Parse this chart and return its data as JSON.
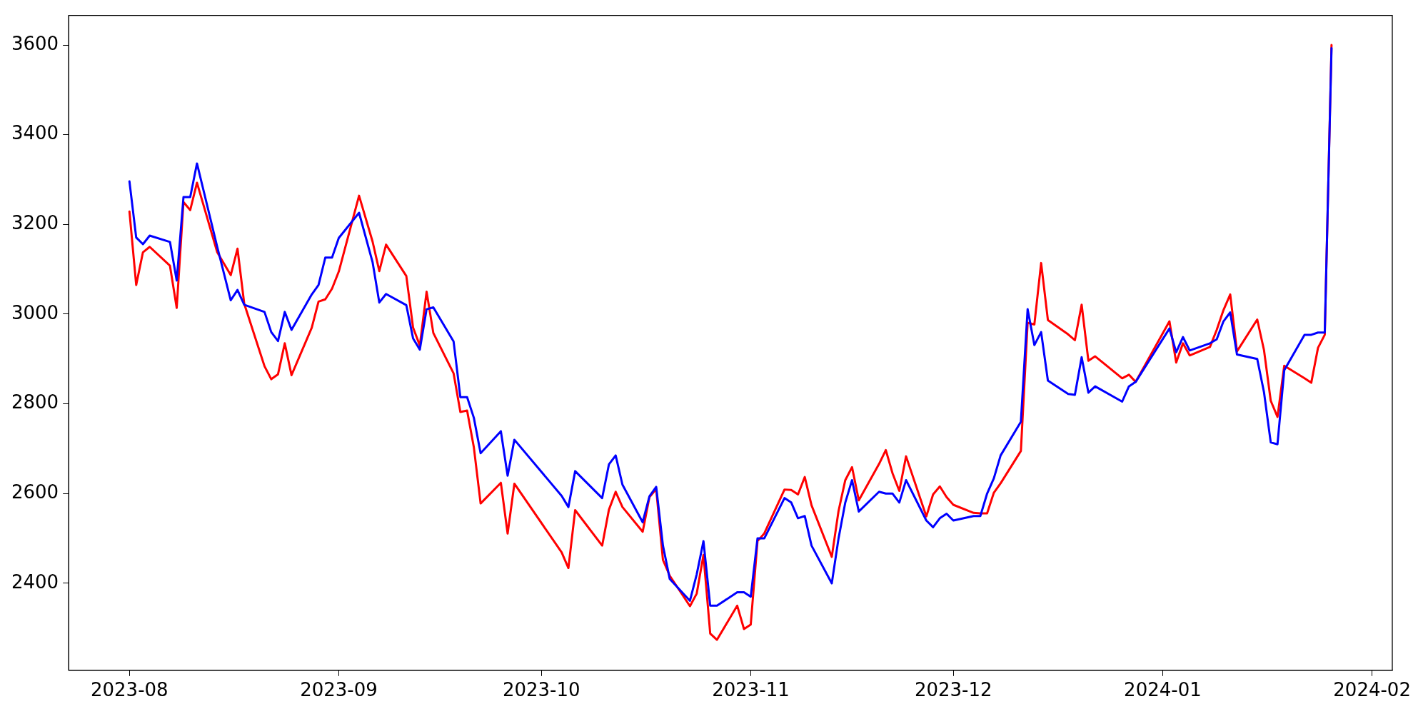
{
  "chart_data": {
    "type": "line",
    "x": [
      "2023-08-01",
      "2023-08-02",
      "2023-08-03",
      "2023-08-04",
      "2023-08-07",
      "2023-08-08",
      "2023-08-09",
      "2023-08-10",
      "2023-08-11",
      "2023-08-14",
      "2023-08-16",
      "2023-08-17",
      "2023-08-18",
      "2023-08-21",
      "2023-08-22",
      "2023-08-23",
      "2023-08-24",
      "2023-08-25",
      "2023-08-28",
      "2023-08-29",
      "2023-08-30",
      "2023-08-31",
      "2023-09-01",
      "2023-09-04",
      "2023-09-06",
      "2023-09-07",
      "2023-09-08",
      "2023-09-11",
      "2023-09-12",
      "2023-09-13",
      "2023-09-14",
      "2023-09-15",
      "2023-09-18",
      "2023-09-19",
      "2023-09-20",
      "2023-09-21",
      "2023-09-22",
      "2023-09-25",
      "2023-09-26",
      "2023-09-27",
      "2023-10-04",
      "2023-10-05",
      "2023-10-06",
      "2023-10-10",
      "2023-10-11",
      "2023-10-12",
      "2023-10-13",
      "2023-10-16",
      "2023-10-17",
      "2023-10-18",
      "2023-10-19",
      "2023-10-20",
      "2023-10-23",
      "2023-10-24",
      "2023-10-25",
      "2023-10-26",
      "2023-10-27",
      "2023-10-30",
      "2023-10-31",
      "2023-11-01",
      "2023-11-02",
      "2023-11-03",
      "2023-11-06",
      "2023-11-07",
      "2023-11-08",
      "2023-11-09",
      "2023-11-10",
      "2023-11-13",
      "2023-11-14",
      "2023-11-15",
      "2023-11-16",
      "2023-11-17",
      "2023-11-20",
      "2023-11-21",
      "2023-11-22",
      "2023-11-23",
      "2023-11-24",
      "2023-11-27",
      "2023-11-28",
      "2023-11-29",
      "2023-11-30",
      "2023-12-01",
      "2023-12-04",
      "2023-12-05",
      "2023-12-06",
      "2023-12-07",
      "2023-12-08",
      "2023-12-11",
      "2023-12-12",
      "2023-12-13",
      "2023-12-14",
      "2023-12-15",
      "2023-12-18",
      "2023-12-19",
      "2023-12-20",
      "2023-12-21",
      "2023-12-22",
      "2023-12-26",
      "2023-12-27",
      "2023-12-28",
      "2024-01-02",
      "2024-01-03",
      "2024-01-04",
      "2024-01-05",
      "2024-01-08",
      "2024-01-09",
      "2024-01-10",
      "2024-01-11",
      "2024-01-12",
      "2024-01-15",
      "2024-01-16",
      "2024-01-17",
      "2024-01-18",
      "2024-01-19",
      "2024-01-22",
      "2024-01-23",
      "2024-01-24",
      "2024-01-25",
      "2024-01-26"
    ],
    "series": [
      {
        "color": "#ff0000",
        "values": [
          3229,
          3065,
          3138,
          3150,
          3108,
          3014,
          3250,
          3232,
          3293,
          3138,
          3087,
          3146,
          3023,
          2884,
          2855,
          2866,
          2935,
          2864,
          2970,
          3028,
          3033,
          3057,
          3095,
          3264,
          3162,
          3096,
          3155,
          3085,
          2970,
          2930,
          3050,
          2958,
          2868,
          2782,
          2785,
          2703,
          2578,
          2624,
          2511,
          2622,
          2469,
          2434,
          2563,
          2484,
          2564,
          2604,
          2570,
          2515,
          2592,
          2610,
          2452,
          2417,
          2349,
          2377,
          2463,
          2288,
          2274,
          2350,
          2298,
          2308,
          2494,
          2511,
          2609,
          2608,
          2598,
          2637,
          2574,
          2459,
          2561,
          2630,
          2659,
          2585,
          2666,
          2697,
          2645,
          2606,
          2683,
          2549,
          2598,
          2616,
          2592,
          2575,
          2557,
          2556,
          2556,
          2602,
          2623,
          2695,
          2981,
          2977,
          3114,
          2987,
          2955,
          2942,
          3021,
          2896,
          2906,
          2857,
          2865,
          2849,
          2984,
          2892,
          2935,
          2908,
          2927,
          2965,
          3009,
          3044,
          2917,
          2988,
          2920,
          2807,
          2771,
          2885,
          2857,
          2847,
          2925,
          2954,
          3600
        ]
      },
      {
        "color": "#0000ff",
        "values": [
          3296,
          3171,
          3156,
          3175,
          3161,
          3075,
          3261,
          3261,
          3336,
          3150,
          3031,
          3054,
          3021,
          3005,
          2960,
          2940,
          3005,
          2965,
          3044,
          3065,
          3126,
          3126,
          3170,
          3226,
          3116,
          3026,
          3045,
          3020,
          2946,
          2921,
          3011,
          3015,
          2939,
          2815,
          2815,
          2769,
          2690,
          2739,
          2640,
          2720,
          2595,
          2570,
          2650,
          2590,
          2665,
          2685,
          2620,
          2536,
          2594,
          2615,
          2484,
          2410,
          2361,
          2420,
          2494,
          2350,
          2350,
          2380,
          2380,
          2370,
          2500,
          2500,
          2590,
          2580,
          2545,
          2550,
          2484,
          2400,
          2500,
          2580,
          2630,
          2560,
          2604,
          2600,
          2600,
          2580,
          2630,
          2540,
          2525,
          2545,
          2555,
          2540,
          2550,
          2550,
          2600,
          2634,
          2685,
          2760,
          3011,
          2931,
          2960,
          2852,
          2822,
          2820,
          2904,
          2825,
          2839,
          2805,
          2839,
          2849,
          2968,
          2915,
          2949,
          2919,
          2935,
          2944,
          2984,
          3004,
          2910,
          2900,
          2826,
          2714,
          2710,
          2875,
          2954,
          2954,
          2959,
          2959,
          3593
        ]
      }
    ],
    "xlim": [
      "2023-07-23",
      "2024-02-04"
    ],
    "xticks": [
      {
        "value": "2023-08-01",
        "label": "2023-08"
      },
      {
        "value": "2023-09-01",
        "label": "2023-09"
      },
      {
        "value": "2023-10-01",
        "label": "2023-10"
      },
      {
        "value": "2023-11-01",
        "label": "2023-11"
      },
      {
        "value": "2023-12-01",
        "label": "2023-12"
      },
      {
        "value": "2024-01-01",
        "label": "2024-01"
      },
      {
        "value": "2024-02-01",
        "label": "2024-02"
      }
    ],
    "ylim": [
      2206,
      3666
    ],
    "yticks": [
      2400,
      2600,
      2800,
      3000,
      3200,
      3400,
      3600
    ],
    "grid": false,
    "legend": false,
    "marker": "none",
    "line_style": "solid"
  }
}
